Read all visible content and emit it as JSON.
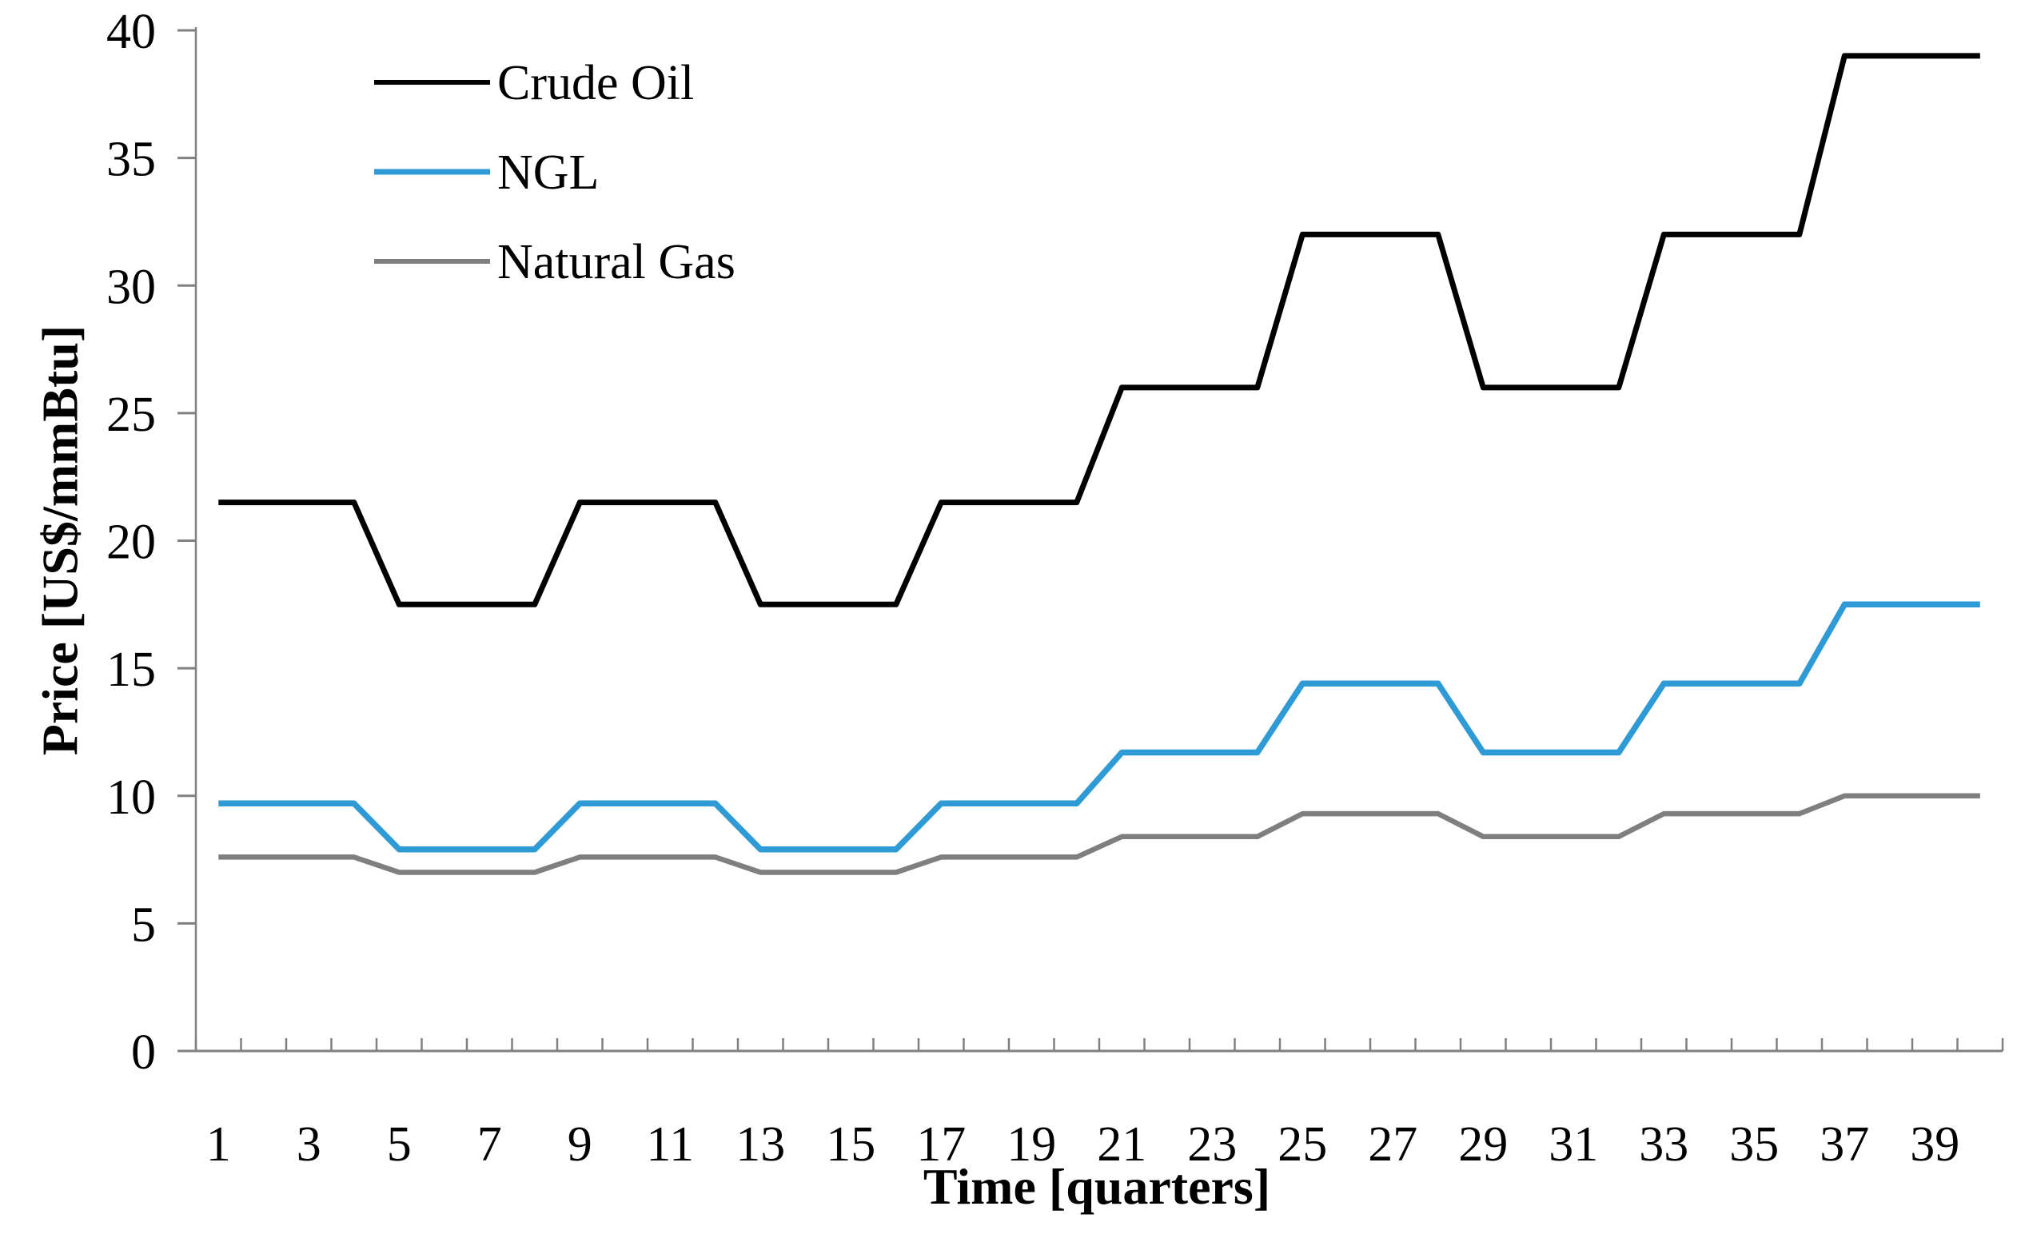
{
  "chart_data": {
    "type": "line",
    "title": "",
    "xlabel": "Time [quarters]",
    "ylabel": "Price [US$/mmBtu]",
    "x": [
      1,
      2,
      3,
      4,
      5,
      6,
      7,
      8,
      9,
      10,
      11,
      12,
      13,
      14,
      15,
      16,
      17,
      18,
      19,
      20,
      21,
      22,
      23,
      24,
      25,
      26,
      27,
      28,
      29,
      30,
      31,
      32,
      33,
      34,
      35,
      36,
      37,
      38,
      39,
      40
    ],
    "x_tick_labels": [
      "1",
      "3",
      "5",
      "7",
      "9",
      "11",
      "13",
      "15",
      "17",
      "19",
      "21",
      "23",
      "25",
      "27",
      "29",
      "31",
      "33",
      "35",
      "37",
      "39"
    ],
    "y_ticks": [
      "0",
      "5",
      "10",
      "15",
      "20",
      "25",
      "30",
      "35",
      "40"
    ],
    "ylim": [
      0,
      40
    ],
    "grid": false,
    "legend_position": "top-left-inside",
    "axis_color": "#808080",
    "series": [
      {
        "name": "Crude Oil",
        "color": "#000000",
        "values": [
          21.5,
          21.5,
          21.5,
          21.5,
          17.5,
          17.5,
          17.5,
          17.5,
          21.5,
          21.5,
          21.5,
          21.5,
          17.5,
          17.5,
          17.5,
          17.5,
          21.5,
          21.5,
          21.5,
          21.5,
          26,
          26,
          26,
          26,
          32,
          32,
          32,
          32,
          26,
          26,
          26,
          26,
          32,
          32,
          32,
          32,
          39,
          39,
          39,
          39
        ]
      },
      {
        "name": "NGL",
        "color": "#2E9BD6",
        "values": [
          9.7,
          9.7,
          9.7,
          9.7,
          7.9,
          7.9,
          7.9,
          7.9,
          9.7,
          9.7,
          9.7,
          9.7,
          7.9,
          7.9,
          7.9,
          7.9,
          9.7,
          9.7,
          9.7,
          9.7,
          11.7,
          11.7,
          11.7,
          11.7,
          14.4,
          14.4,
          14.4,
          14.4,
          11.7,
          11.7,
          11.7,
          11.7,
          14.4,
          14.4,
          14.4,
          14.4,
          17.5,
          17.5,
          17.5,
          17.5
        ]
      },
      {
        "name": "Natural Gas",
        "color": "#7F7F7F",
        "values": [
          7.6,
          7.6,
          7.6,
          7.6,
          7.0,
          7.0,
          7.0,
          7.0,
          7.6,
          7.6,
          7.6,
          7.6,
          7.0,
          7.0,
          7.0,
          7.0,
          7.6,
          7.6,
          7.6,
          7.6,
          8.4,
          8.4,
          8.4,
          8.4,
          9.3,
          9.3,
          9.3,
          9.3,
          8.4,
          8.4,
          8.4,
          8.4,
          9.3,
          9.3,
          9.3,
          9.3,
          10.0,
          10.0,
          10.0,
          10.0
        ]
      }
    ]
  }
}
